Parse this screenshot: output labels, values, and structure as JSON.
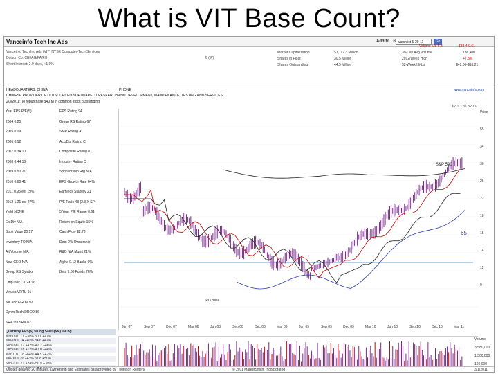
{
  "slide_title": "What is VIT Base Count?",
  "header": {
    "company": "Vanceinfo Tech Inc Ads",
    "add_to_list": "Add to List:",
    "list_select": "watchlist 5-29-11",
    "go": "Go"
  },
  "subheader": {
    "line1": "Vanceinfo Tech Inc Ads (VIT) NYSE Computer-Tech Services",
    "line2": "Dotson Co: CBI/AG/PA/FH",
    "line3": "Short Interest: 2.9 days, +1.9%",
    "phone": "© (W)"
  },
  "stats": {
    "market_cap_label": "Market Capitalization",
    "market_cap": "$1,112.3 Million",
    "float_label": "Shares in Float",
    "float": "30.5 Million",
    "outstanding_label": "Shares Outstanding",
    "outstanding": "44.5 Million",
    "vol_label": "30-Day Avg Volume",
    "vol": "136,400",
    "hi_label": "2012/Week High",
    "hi": "+7.3%",
    "week_label": "52-Week Hi-Lo",
    "week": "$41.06-$18.21",
    "price": "Volume 6.8-6.8",
    "chg": "$33.4-0.61"
  },
  "hq": {
    "label": "HEADQUARTERS: CHINA",
    "phone": "PHONE",
    "url": "www.vanceinfo.com"
  },
  "desc1": "CHINESE PROVIDER OF OUTSOURCED SOFTWARE, IT RESEARCH AND DEVELOPMENT, MAINTENANCE, TESTING AND SERVICES",
  "desc2": "2/3/2011: To repurchase $40 M in common stock outstanding",
  "ipo": "IPO: 12/12/2007",
  "left_rows": [
    "Year  EPS  P/E(S)",
    "2004  0.25",
    "2005  0.09",
    "2006  0.12",
    "2007  0.34  10",
    "2008  0.44  13",
    "2009  0.50  21",
    "2010  0.60  41",
    "2011  0.95 est  19%",
    "2012  1.21 est  27%",
    "Yield        NONE",
    "Ex-Div        N/A",
    "Book Value   20.17",
    "Inventory TO  N/A",
    "Alt Volume    N/A",
    "New CEO       N/A",
    "Group RS Symbol",
    "CmpTask  CTGX  96",
    "Virtusa  VRTU  91",
    "NIC Inc  EGOV  92",
    "Dynm Rsch DRCO 86",
    "SRA Intl  SRX  82"
  ],
  "ratings": [
    "EPS Rating       94",
    "Group RS Rating  67",
    "SMR Rating       A",
    "Acc/Dis Rating   C",
    "Composite Rating 87",
    "Industry Rating  C",
    "Sponsorship Rtg N/A",
    "EPS Growth Rate 64%",
    "Earnings Stability 21",
    "P/E Ratio 48 (2.3 X SP)",
    "5 Year P/E Range 0.61",
    "Return on Equity 15%",
    "Cash Flow       $2.78",
    "Debt 0%   Ownership",
    "R&D N/A   Mgmt  21%",
    "Alpha 0.12 Banks 0%",
    "Beta 1.60 Funds 76%"
  ],
  "quarterly": {
    "header": "Quarterly  EPS($)  %Chg  Sales($M)  %Chg",
    "rows": [
      "Mar-09  0.11  +30%  30.1  +47%",
      "Jun-09  0.14  +40%  34.6  +42%",
      "Sep-09  0.17  +42%  42.2  +46%",
      "Dec-09  0.18  +12%  47.0  +44%",
      "Mar-10  0.18  +64%  44.5  +47%",
      "Jun-10  0.20  +43%  51.8  +50%",
      "Sep-10  0.21  +24%  50.9  +39%",
      "Dec-10  0.27  +50%  54.6  +55%"
    ]
  },
  "right_axis": [
    "Price",
    "55",
    "34",
    "30",
    "26",
    "22",
    "18",
    "15",
    "14",
    "12",
    "9"
  ],
  "vol_axis": [
    "Volume",
    "3,580,000",
    "1,500,000",
    "160,000"
  ],
  "x_axis": [
    "Jun 07",
    "Sep 07",
    "Dec 07",
    "Mar 08",
    "Jun 08",
    "Sep 08",
    "Dec 08",
    "Mar 09",
    "Jun 09",
    "Sep 09",
    "Dec 09",
    "Mar 10",
    "Jun 10",
    "Sep 10",
    "Dec 10",
    "Mar 11"
  ],
  "labels": {
    "sp500": "S&P 500",
    "rs": "65",
    "ipo_base": "IPO Base"
  },
  "footer": {
    "left": "Quotes delayed 20 minutes. Ownership and Estimates data provided by Thomson Reuters",
    "mid": "© 2011 MarketSmith, Incorporated",
    "right": "3/1/2011"
  },
  "colors": {
    "accent": "#4a69bd",
    "price": "#7a2a8c",
    "ma": "#c00",
    "rs": "#2d3aa8",
    "hline": "#7fb0d8"
  }
}
